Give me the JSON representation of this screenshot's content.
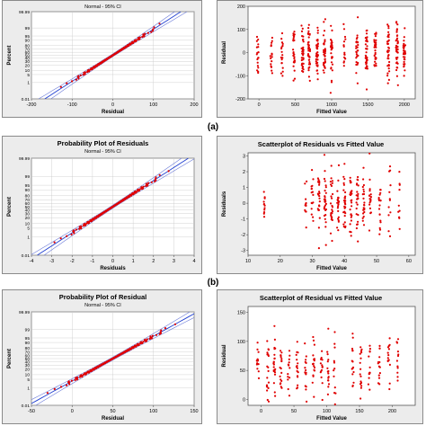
{
  "rows": [
    {
      "caption": "(a)",
      "prob": {
        "type": "scatter",
        "title": "",
        "subtitle": "Normal - 95% CI",
        "xlabel": "Residual",
        "ylabel": "Percent",
        "xlim": [
          -200,
          200
        ],
        "xticks": [
          "-200",
          "-100",
          "0",
          "100",
          "200"
        ],
        "xtick_values": [
          -200,
          -100,
          0,
          100,
          200
        ],
        "yticks": [
          "0.01",
          "1",
          "5",
          "10",
          "20",
          "30",
          "40",
          "50",
          "60",
          "70",
          "80",
          "90",
          "95",
          "99",
          "99.99"
        ],
        "ytick_percents": [
          0.01,
          1,
          5,
          10,
          20,
          30,
          40,
          50,
          60,
          70,
          80,
          90,
          95,
          99,
          99.99
        ],
        "line": {
          "mean": 0,
          "sd": 45
        },
        "points": {
          "count": 200,
          "mean": 0,
          "sd": 45
        }
      },
      "fit": {
        "type": "scatter",
        "title": "",
        "xlabel": "Fitted Value",
        "ylabel": "Residual",
        "xlim": [
          -150,
          2150
        ],
        "ylim": [
          -200,
          200
        ],
        "xticks": [
          "0",
          "500",
          "1000",
          "1500",
          "2000"
        ],
        "xtick_values": [
          0,
          500,
          1000,
          1500,
          2000
        ],
        "yticks": [
          "-200",
          "-100",
          "0",
          "100",
          "200"
        ],
        "ytick_values": [
          -200,
          -100,
          0,
          100,
          200
        ],
        "clusters": [
          {
            "x": -20,
            "n": 18,
            "spread": 55
          },
          {
            "x": 170,
            "n": 16,
            "spread": 50
          },
          {
            "x": 320,
            "n": 18,
            "spread": 55
          },
          {
            "x": 480,
            "n": 26,
            "spread": 50
          },
          {
            "x": 600,
            "n": 34,
            "spread": 55
          },
          {
            "x": 690,
            "n": 40,
            "spread": 55
          },
          {
            "x": 800,
            "n": 42,
            "spread": 50
          },
          {
            "x": 900,
            "n": 36,
            "spread": 50
          },
          {
            "x": 1000,
            "n": 30,
            "spread": 50
          },
          {
            "x": 1180,
            "n": 16,
            "spread": 45
          },
          {
            "x": 1350,
            "n": 28,
            "spread": 55
          },
          {
            "x": 1480,
            "n": 36,
            "spread": 55
          },
          {
            "x": 1600,
            "n": 28,
            "spread": 55
          },
          {
            "x": 1780,
            "n": 36,
            "spread": 55
          },
          {
            "x": 1900,
            "n": 40,
            "spread": 55
          },
          {
            "x": 2000,
            "n": 34,
            "spread": 55
          }
        ]
      }
    },
    {
      "caption": "(b)",
      "prob": {
        "type": "scatter",
        "title": "Probability Plot of Residuals",
        "subtitle": "Normal - 95% CI",
        "xlabel": "Residuals",
        "ylabel": "Percent",
        "xlim": [
          -4,
          4
        ],
        "xticks": [
          "-4",
          "-3",
          "-2",
          "-1",
          "0",
          "1",
          "2",
          "3",
          "4"
        ],
        "xtick_values": [
          -4,
          -3,
          -2,
          -1,
          0,
          1,
          2,
          3,
          4
        ],
        "yticks": [
          "0.01",
          "1",
          "5",
          "10",
          "20",
          "30",
          "40",
          "50",
          "60",
          "70",
          "80",
          "90",
          "95",
          "99",
          "99.99"
        ],
        "ytick_percents": [
          0.01,
          1,
          5,
          10,
          20,
          30,
          40,
          50,
          60,
          70,
          80,
          90,
          95,
          99,
          99.99
        ],
        "line": {
          "mean": 0,
          "sd": 1
        },
        "points": {
          "count": 220,
          "mean": 0,
          "sd": 1
        }
      },
      "fit": {
        "type": "scatter",
        "title": "Scatterplot of Residuals vs Fitted Value",
        "xlabel": "Fitted Value",
        "ylabel": "Residuals",
        "xlim": [
          10,
          62
        ],
        "ylim": [
          -3.3,
          3.2
        ],
        "xticks": [
          "10",
          "20",
          "30",
          "40",
          "50",
          "60"
        ],
        "xtick_values": [
          10,
          20,
          30,
          40,
          50,
          60
        ],
        "yticks": [
          "-3",
          "-2",
          "-1",
          "0",
          "1",
          "2",
          "3"
        ],
        "ytick_values": [
          -3,
          -2,
          -1,
          0,
          1,
          2,
          3
        ],
        "clusters": [
          {
            "x": 15,
            "n": 12,
            "spread": 0.7
          },
          {
            "x": 28,
            "n": 12,
            "spread": 1.0
          },
          {
            "x": 30,
            "n": 16,
            "spread": 1.0
          },
          {
            "x": 32,
            "n": 22,
            "spread": 1.0
          },
          {
            "x": 34,
            "n": 28,
            "spread": 1.0
          },
          {
            "x": 36,
            "n": 26,
            "spread": 1.0
          },
          {
            "x": 38,
            "n": 22,
            "spread": 1.0
          },
          {
            "x": 40,
            "n": 28,
            "spread": 1.0
          },
          {
            "x": 42,
            "n": 26,
            "spread": 1.0
          },
          {
            "x": 44,
            "n": 24,
            "spread": 1.0
          },
          {
            "x": 46,
            "n": 22,
            "spread": 1.0
          },
          {
            "x": 48,
            "n": 18,
            "spread": 1.0
          },
          {
            "x": 51,
            "n": 18,
            "spread": 1.0
          },
          {
            "x": 54,
            "n": 12,
            "spread": 1.0
          },
          {
            "x": 57,
            "n": 10,
            "spread": 0.9
          }
        ]
      }
    },
    {
      "caption": "",
      "prob": {
        "type": "scatter",
        "title": "Probability Plot of Residual",
        "subtitle": "Normal - 95% CI",
        "xlabel": "Residual",
        "ylabel": "Percent",
        "xlim": [
          -50,
          150
        ],
        "xticks": [
          "-50",
          "0",
          "50",
          "100",
          "150"
        ],
        "xtick_values": [
          -50,
          0,
          50,
          100,
          150
        ],
        "yticks": [
          "0.01",
          "1",
          "5",
          "10",
          "20",
          "30",
          "40",
          "50",
          "60",
          "70",
          "80",
          "90",
          "95",
          "99",
          "99.99"
        ],
        "ytick_percents": [
          0.01,
          1,
          5,
          10,
          20,
          30,
          40,
          50,
          60,
          70,
          80,
          90,
          95,
          99,
          99.99
        ],
        "line": {
          "mean": 50,
          "sd": 28
        },
        "points": {
          "count": 220,
          "mean": 50,
          "sd": 28
        }
      },
      "fit": {
        "type": "scatter",
        "title": "Scatterplot of Residual vs Fitted Value",
        "xlabel": "Fitted Value",
        "ylabel": "Residual",
        "xlim": [
          -20,
          235
        ],
        "ylim": [
          -10,
          160
        ],
        "xticks": [
          "0",
          "50",
          "100",
          "150",
          "200"
        ],
        "xtick_values": [
          0,
          50,
          100,
          150,
          200
        ],
        "yticks": [
          "0",
          "50",
          "100",
          "150"
        ],
        "ytick_values": [
          0,
          50,
          100,
          150
        ],
        "clusters": [
          {
            "x": -5,
            "n": 14,
            "spread": 28,
            "center": 55
          },
          {
            "x": 10,
            "n": 20,
            "spread": 28,
            "center": 55
          },
          {
            "x": 20,
            "n": 22,
            "spread": 28,
            "center": 55
          },
          {
            "x": 30,
            "n": 18,
            "spread": 28,
            "center": 55
          },
          {
            "x": 42,
            "n": 14,
            "spread": 28,
            "center": 55
          },
          {
            "x": 55,
            "n": 16,
            "spread": 28,
            "center": 55
          },
          {
            "x": 68,
            "n": 16,
            "spread": 28,
            "center": 55
          },
          {
            "x": 80,
            "n": 18,
            "spread": 28,
            "center": 55
          },
          {
            "x": 92,
            "n": 14,
            "spread": 28,
            "center": 55
          },
          {
            "x": 102,
            "n": 16,
            "spread": 28,
            "center": 55
          },
          {
            "x": 112,
            "n": 12,
            "spread": 28,
            "center": 55
          },
          {
            "x": 140,
            "n": 16,
            "spread": 28,
            "center": 55
          },
          {
            "x": 152,
            "n": 16,
            "spread": 28,
            "center": 55
          },
          {
            "x": 165,
            "n": 14,
            "spread": 28,
            "center": 55
          },
          {
            "x": 180,
            "n": 14,
            "spread": 28,
            "center": 55
          },
          {
            "x": 195,
            "n": 14,
            "spread": 28,
            "center": 55
          },
          {
            "x": 208,
            "n": 12,
            "spread": 28,
            "center": 55
          }
        ]
      }
    }
  ],
  "style": {
    "point_color": "#e00000",
    "line_color": "#1f3fd0",
    "ci_color": "#6a7ad8",
    "plot_bg": "#ffffff",
    "panel_bg": "#ececec",
    "grid_color": "#c8c8c8"
  }
}
